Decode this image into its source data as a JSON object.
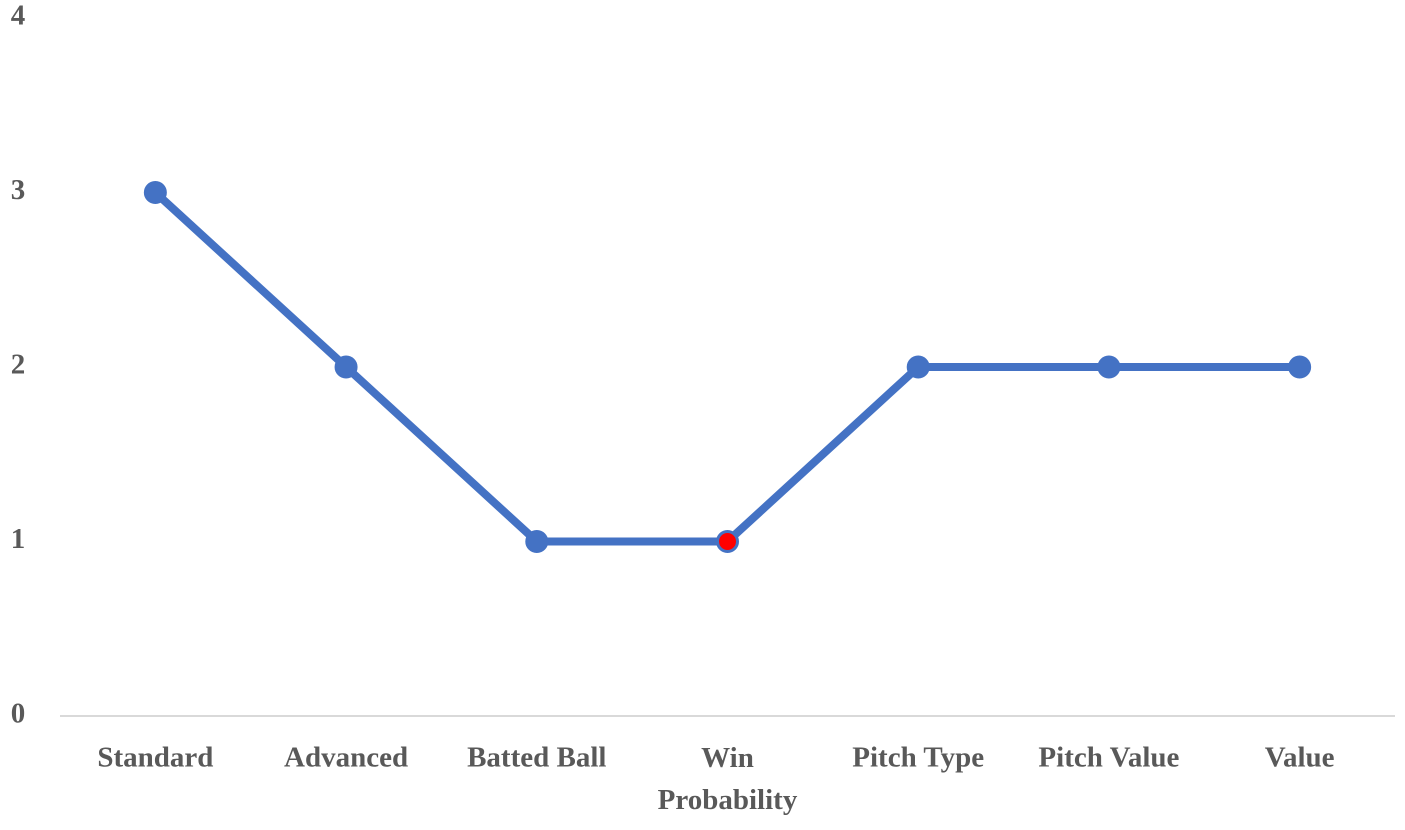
{
  "chart_data": {
    "type": "line",
    "categories": [
      "Standard",
      "Advanced",
      "Batted Ball",
      "Win Probability",
      "Pitch Type",
      "Pitch Value",
      "Value"
    ],
    "series": [
      {
        "color": "#4472c4",
        "values": [
          3,
          2,
          1,
          1,
          2,
          2,
          2
        ],
        "marker_colors": [
          "#4472c4",
          "#4472c4",
          "#4472c4",
          "#ff0000",
          "#4472c4",
          "#4472c4",
          "#4472c4"
        ]
      }
    ],
    "ylim": [
      0,
      4
    ],
    "yticks": [
      0,
      1,
      2,
      3,
      4
    ],
    "grid": false
  }
}
